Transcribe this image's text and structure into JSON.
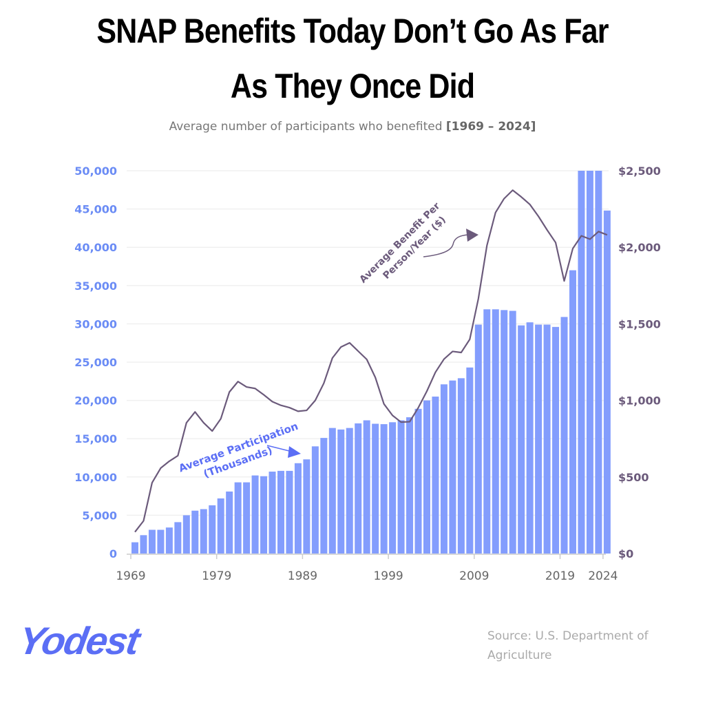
{
  "title_line1": "SNAP Benefits Today Don’t Go As Far",
  "title_line2": "As They Once Did",
  "subtitle_text": "Average number of participants who benefited ",
  "subtitle_range": "[1969 – 2024]",
  "source": "Source: U.S. Department of Agriculture",
  "logo": "Yodest",
  "colors": {
    "bars": "#839dfd",
    "line": "#6b5a7b",
    "left_axis": "#6b8cf5",
    "right_axis": "#6b5a7b"
  },
  "chart_data": {
    "type": "bar+line",
    "x": [
      1969,
      1970,
      1971,
      1972,
      1973,
      1974,
      1975,
      1976,
      1977,
      1978,
      1979,
      1980,
      1981,
      1982,
      1983,
      1984,
      1985,
      1986,
      1987,
      1988,
      1989,
      1990,
      1991,
      1992,
      1993,
      1994,
      1995,
      1996,
      1997,
      1998,
      1999,
      2000,
      2001,
      2002,
      2003,
      2004,
      2005,
      2006,
      2007,
      2008,
      2009,
      2010,
      2011,
      2012,
      2013,
      2014,
      2015,
      2016,
      2017,
      2018,
      2019,
      2020,
      2021,
      2022,
      2023,
      2024
    ],
    "series": [
      {
        "name": "Average Participation (Thousands)",
        "type": "bar",
        "axis": "left",
        "values": [
          1470,
          2400,
          3100,
          3100,
          3400,
          4100,
          5000,
          5600,
          5800,
          6300,
          7200,
          8100,
          9300,
          9300,
          10200,
          10100,
          10700,
          10800,
          10800,
          11800,
          12300,
          14000,
          15100,
          16400,
          16200,
          16400,
          17000,
          17400,
          16950,
          16900,
          17150,
          17400,
          17800,
          18900,
          20000,
          20500,
          22100,
          22600,
          22900,
          24300,
          29900,
          31900,
          31900,
          31800,
          31700,
          29800,
          30200,
          29900,
          29900,
          29600,
          30900,
          37000,
          50000,
          50000,
          50000,
          44800
        ]
      },
      {
        "name": "Average Benefit Per Person/Year ($)",
        "type": "line",
        "axis": "right",
        "values": [
          141,
          213,
          463,
          558,
          603,
          639,
          854,
          925,
          854,
          800,
          880,
          1055,
          1123,
          1088,
          1078,
          1037,
          992,
          968,
          953,
          929,
          935,
          1000,
          1112,
          1277,
          1349,
          1376,
          1322,
          1268,
          1150,
          977,
          902,
          858,
          861,
          952,
          1060,
          1184,
          1270,
          1320,
          1313,
          1399,
          1664,
          2012,
          2227,
          2318,
          2373,
          2329,
          2280,
          2202,
          2114,
          2031,
          1780,
          1992,
          2075,
          2053,
          2103,
          2081
        ]
      }
    ],
    "left_axis": {
      "ylim": [
        0,
        50000
      ],
      "ticks": [
        "0",
        "5,000",
        "10,000",
        "15,000",
        "20,000",
        "25,000",
        "30,000",
        "35,000",
        "40,000",
        "45,000",
        "50,000"
      ]
    },
    "right_axis": {
      "ylim": [
        0,
        2500
      ],
      "ticks": [
        "$0",
        "$500",
        "$1,000",
        "$1,500",
        "$2,000",
        "$2,500"
      ]
    },
    "x_ticks": [
      "1969",
      "1979",
      "1989",
      "1999",
      "2009",
      "2019",
      "2024"
    ],
    "grid": true,
    "annotations": {
      "bars": "Average Participation",
      "bars2": "(Thousands)",
      "line": "Average Benefit Per",
      "line2": "Person/Year ($)"
    }
  }
}
